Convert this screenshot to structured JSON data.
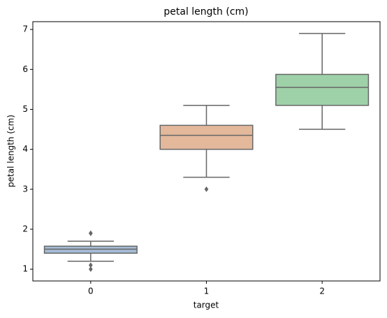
{
  "chart_data": {
    "type": "box",
    "title": "petal length (cm)",
    "x_label": "target",
    "y_label": "petal length (cm)",
    "categories": [
      "0",
      "1",
      "2"
    ],
    "colors": [
      "#a5bcd4",
      "#e3b89b",
      "#9fd1a9"
    ],
    "boxes": [
      {
        "whislo": 1.2,
        "q1": 1.4,
        "med": 1.5,
        "q3": 1.575,
        "whishi": 1.7,
        "fliers": [
          1.0,
          1.1,
          1.9,
          1.9
        ]
      },
      {
        "whislo": 3.3,
        "q1": 4.0,
        "med": 4.35,
        "q3": 4.6,
        "whishi": 5.1,
        "fliers": [
          3.0
        ]
      },
      {
        "whislo": 4.5,
        "q1": 5.1,
        "med": 5.55,
        "q3": 5.875,
        "whishi": 6.9,
        "fliers": []
      }
    ],
    "ylim": [
      0.705,
      7.195
    ],
    "yticks": [
      1,
      2,
      3,
      4,
      5,
      6,
      7
    ]
  }
}
